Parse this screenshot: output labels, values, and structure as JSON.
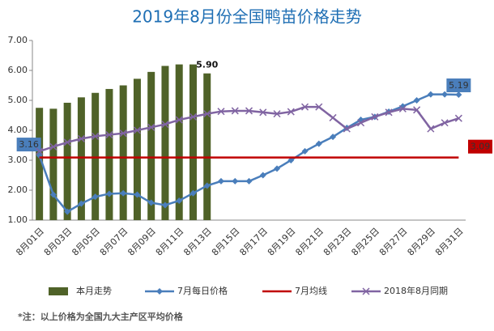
{
  "chart_data": {
    "type": "combo",
    "title": "2019年8月份全国鸭苗价格走势",
    "footnote": "*注：以上价格为全国九大主产区平均价格",
    "categories": [
      "8月01日",
      null,
      "8月03日",
      null,
      "8月05日",
      null,
      "8月07日",
      null,
      "8月09日",
      null,
      "8月11日",
      null,
      "8月13日",
      null,
      "8月15日",
      null,
      "8月17日",
      null,
      "8月19日",
      null,
      "8月21日",
      null,
      "8月23日",
      null,
      "8月25日",
      null,
      "8月27日",
      null,
      "8月29日",
      null,
      "8月31日"
    ],
    "ylim": [
      1,
      7
    ],
    "yticks": [
      {
        "value": 1,
        "label": "1.00"
      },
      {
        "value": 2,
        "label": "2.00"
      },
      {
        "value": 3,
        "label": "3.00"
      },
      {
        "value": 4,
        "label": "4.00"
      },
      {
        "value": 5,
        "label": "5.00"
      },
      {
        "value": 6,
        "label": "6.00"
      },
      {
        "value": 7,
        "label": "7.00"
      }
    ],
    "grid": false,
    "series": [
      {
        "name": "本月走势",
        "type": "bar",
        "color": "#4f6228",
        "values": [
          4.75,
          4.72,
          4.92,
          5.1,
          5.25,
          5.38,
          5.5,
          5.72,
          5.95,
          6.15,
          6.2,
          6.2,
          5.9,
          null,
          null,
          null,
          null,
          null,
          null,
          null,
          null,
          null,
          null,
          null,
          null,
          null,
          null,
          null,
          null,
          null,
          null
        ],
        "value_labels": [
          null,
          null,
          null,
          null,
          null,
          null,
          null,
          null,
          null,
          null,
          null,
          null,
          "5.90",
          null,
          null,
          null,
          null,
          null,
          null,
          null,
          null,
          null,
          null,
          null,
          null,
          null,
          null,
          null,
          null,
          null,
          null
        ]
      },
      {
        "name": "7月每日价格",
        "type": "line",
        "marker": "diamond",
        "color": "#4a7ebb",
        "values": [
          3.16,
          1.85,
          1.28,
          1.55,
          1.78,
          1.88,
          1.9,
          1.85,
          1.58,
          1.5,
          1.65,
          1.9,
          2.15,
          2.3,
          2.3,
          2.3,
          2.5,
          2.72,
          3.0,
          3.3,
          3.55,
          3.78,
          4.08,
          4.35,
          4.45,
          4.62,
          4.8,
          5.0,
          5.2,
          5.2,
          5.19
        ],
        "value_labels": [
          "3.16",
          null,
          null,
          null,
          null,
          null,
          null,
          null,
          null,
          null,
          null,
          null,
          null,
          null,
          null,
          null,
          null,
          null,
          null,
          null,
          null,
          null,
          null,
          null,
          null,
          null,
          null,
          null,
          null,
          null,
          "5.19"
        ]
      },
      {
        "name": "7月均线",
        "type": "line",
        "marker": "none",
        "color": "#c00000",
        "values": [
          3.09,
          3.09,
          3.09,
          3.09,
          3.09,
          3.09,
          3.09,
          3.09,
          3.09,
          3.09,
          3.09,
          3.09,
          3.09,
          3.09,
          3.09,
          3.09,
          3.09,
          3.09,
          3.09,
          3.09,
          3.09,
          3.09,
          3.09,
          3.09,
          3.09,
          3.09,
          3.09,
          3.09,
          3.09,
          3.09,
          3.09
        ],
        "value_labels": [
          null,
          null,
          null,
          null,
          null,
          null,
          null,
          null,
          null,
          null,
          null,
          null,
          null,
          null,
          null,
          null,
          null,
          null,
          null,
          null,
          null,
          null,
          null,
          null,
          null,
          null,
          null,
          null,
          null,
          null,
          "3.09"
        ]
      },
      {
        "name": "2018年8月同期",
        "type": "line",
        "marker": "x",
        "color": "#8064a2",
        "values": [
          3.3,
          3.45,
          3.6,
          3.72,
          3.8,
          3.85,
          3.9,
          4.0,
          4.1,
          4.2,
          4.35,
          4.45,
          4.55,
          4.63,
          4.65,
          4.65,
          4.6,
          4.55,
          4.62,
          4.78,
          4.78,
          4.42,
          4.05,
          4.25,
          4.45,
          4.6,
          4.72,
          4.68,
          4.05,
          4.25,
          4.4
        ]
      }
    ]
  }
}
